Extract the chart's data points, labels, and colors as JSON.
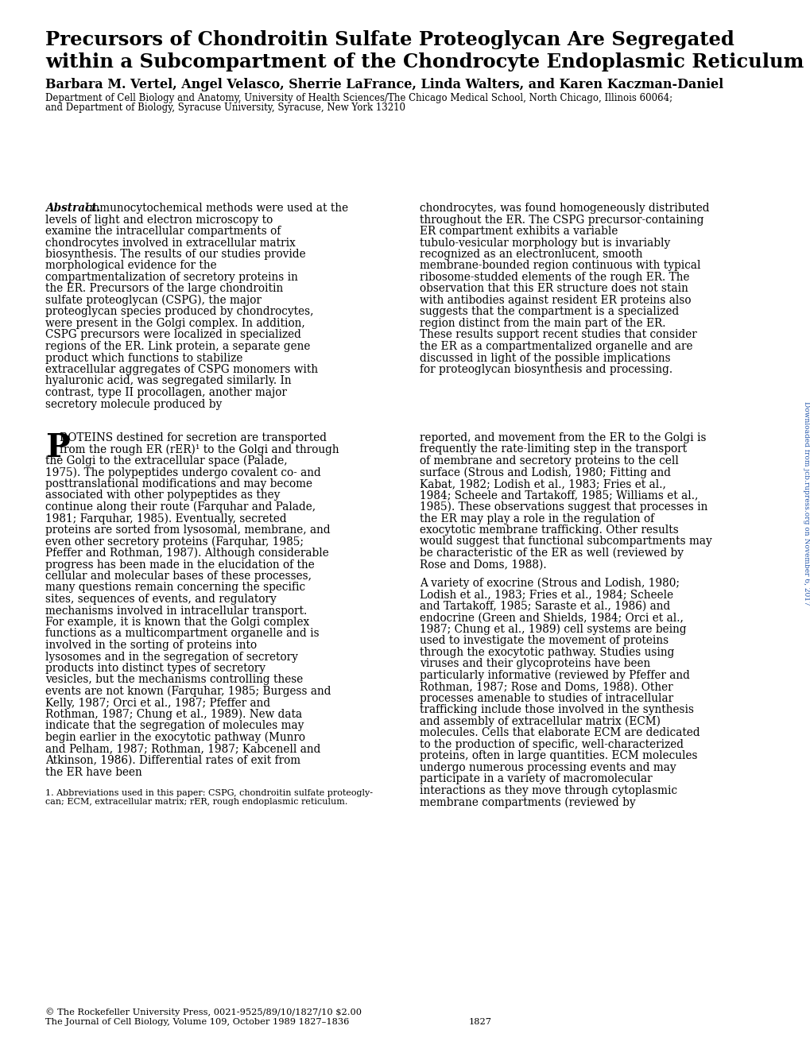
{
  "title_line1": "Precursors of Chondroitin Sulfate Proteoglycan Are Segregated",
  "title_line2": "within a Subcompartment of the Chondrocyte Endoplasmic Reticulum",
  "authors": "Barbara M. Vertel, Angel Velasco, Sherrie LaFrance, Linda Walters, and Karen Kaczman-Daniel",
  "affiliation_line1": "Department of Cell Biology and Anatomy, University of Health Sciences/The Chicago Medical School, North Chicago, Illinois 60064;",
  "affiliation_line2": "and Department of Biology, Syracuse University, Syracuse, New York 13210",
  "abstract_label": "Abstract.",
  "abstract_body_left": "Immunocytochemical methods were used at the levels of light and electron microscopy to examine the intracellular compartments of chondrocytes involved in extracellular matrix biosynthesis. The results of our studies provide morphological evidence for the compartmentalization of secretory proteins in the ER. Precursors of the large chondroitin sulfate proteoglycan (CSPG), the major proteoglycan species produced by chondrocytes, were present in the Golgi complex. In addition, CSPG precursors were localized in specialized regions of the ER. Link protein, a separate gene product which functions to stabilize extracellular aggregates of CSPG monomers with hyaluronic acid, was segregated similarly. In contrast, type II procollagen, another major secretory molecule produced by",
  "abstract_body_right": "chondrocytes, was found homogeneously distributed throughout the ER. The CSPG precursor-containing ER compartment exhibits a variable tubulo-vesicular morphology but is invariably recognized as an electronlucent, smooth membrane-bounded region continuous with typical ribosome-studded elements of the rough ER. The observation that this ER structure does not stain with antibodies against resident ER proteins also suggests that the compartment is a specialized region distinct from the main part of the ER. These results support recent studies that consider the ER as a compartmentalized organelle and are discussed in light of the possible implications for proteoglycan biosynthesis and processing.",
  "intro_rest": "ROTEINS destined for secretion are transported from the rough ER (rER)¹ to the Golgi and through the Golgi to the extracellular space (Palade, 1975). The polypeptides undergo covalent co- and posttranslational modifications and may become associated with other polypeptides as they continue along their route (Farquhar and Palade, 1981; Farquhar, 1985). Eventually, secreted proteins are sorted from lysosomal, membrane, and even other secretory proteins (Farquhar, 1985; Pfeffer and Rothman, 1987). Although considerable progress has been made in the elucidation of the cellular and molecular bases of these processes, many questions remain concerning the specific sites, sequences of events, and regulatory mechanisms involved in intracellular transport. For example, it is known that the Golgi complex functions as a multicompartment organelle and is involved in the sorting of proteins into lysosomes and in the segregation of secretory products into distinct types of secretory vesicles, but the mechanisms controlling these events are not known (Farquhar, 1985; Burgess and Kelly, 1987; Orci et al., 1987; Pfeffer and Rothman, 1987; Chung et al., 1989). New data indicate that the segregation of molecules may begin earlier in the exocytotic pathway (Munro and Pelham, 1987; Rothman, 1987; Kabcenell and Atkinson, 1986). Differential rates of exit from the ER have been",
  "intro_right_para1": "reported, and movement from the ER to the Golgi is frequently the rate-limiting step in the transport of membrane and secretory proteins to the cell surface (Strous and Lodish, 1980; Fitting and Kabat, 1982; Lodish et al., 1983; Fries et al., 1984; Scheele and Tartakoff, 1985; Williams et al., 1985). These observations suggest that processes in the ER may play a role in the regulation of exocytotic membrane trafficking. Other results would suggest that functional subcompartments may be characteristic of the ER as well (reviewed by Rose and Doms, 1988).",
  "intro_right_para2": "A variety of exocrine (Strous and Lodish, 1980; Lodish et al., 1983; Fries et al., 1984; Scheele and Tartakoff, 1985; Saraste et al., 1986) and endocrine (Green and Shields, 1984; Orci et al., 1987; Chung et al., 1989) cell systems are being used to investigate the movement of proteins through the exocytotic pathway. Studies using viruses and their glycoproteins have been particularly informative (reviewed by Pfeffer and Rothman, 1987; Rose and Doms, 1988). Other processes amenable to studies of intracellular trafficking include those involved in the synthesis and assembly of extracellular matrix (ECM) molecules. Cells that elaborate ECM are dedicated to the production of specific, well-characterized proteins, often in large quantities. ECM molecules undergo numerous processing events and may participate in a variety of macromolecular interactions as they move through cytoplasmic membrane compartments (reviewed by",
  "footnote_line1": "1. Abbreviations used in this paper: CSPG, chondroitin sulfate proteogly-",
  "footnote_line2": "can; ECM, extracellular matrix; rER, rough endoplasmic reticulum.",
  "copyright_line1": "© The Rockefeller University Press, 0021-9525/89/10/1827/10 $2.00",
  "copyright_line2": "The Journal of Cell Biology, Volume 109, October 1989 1827–1836",
  "page_number": "1827",
  "sidebar_text": "Downloaded from jcb.rupress.org on November 6, 2017",
  "bg_color": "#ffffff",
  "text_color": "#000000",
  "sidebar_color": "#2255aa"
}
